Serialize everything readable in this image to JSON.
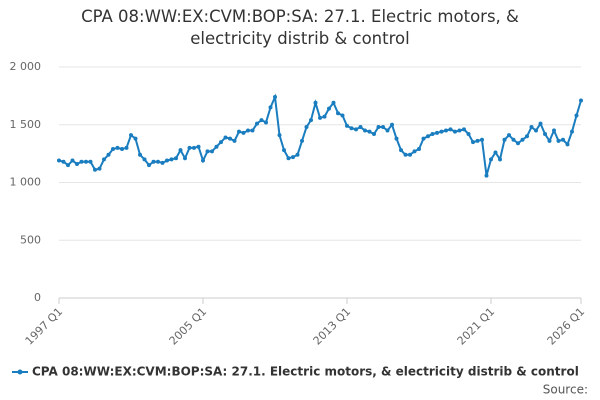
{
  "chart_data": {
    "type": "line",
    "title": "CPA 08:WW:EX:CVM:BOP:SA: 27.1. Electric motors, & electricity distrib & control",
    "categories": [
      "1997 Q1",
      null,
      null,
      null,
      null,
      null,
      null,
      null,
      null,
      null,
      null,
      null,
      null,
      null,
      null,
      null,
      null,
      null,
      null,
      null,
      null,
      null,
      null,
      null,
      null,
      null,
      null,
      null,
      null,
      null,
      null,
      null,
      "2005 Q1",
      null,
      null,
      null,
      null,
      null,
      null,
      null,
      null,
      null,
      null,
      null,
      null,
      null,
      null,
      null,
      null,
      null,
      null,
      null,
      null,
      null,
      null,
      null,
      null,
      null,
      null,
      null,
      null,
      null,
      null,
      null,
      "2013 Q1",
      null,
      null,
      null,
      null,
      null,
      null,
      null,
      null,
      null,
      null,
      null,
      null,
      null,
      null,
      null,
      null,
      null,
      null,
      null,
      null,
      null,
      null,
      null,
      null,
      null,
      null,
      null,
      null,
      null,
      null,
      null,
      "2021 Q1",
      null,
      null,
      null,
      null,
      null,
      null,
      null,
      null,
      null,
      null,
      null,
      null,
      null,
      null,
      null,
      null,
      null,
      null,
      null,
      "2026 Q1"
    ],
    "series": [
      {
        "name": "CPA 08:WW:EX:CVM:BOP:SA: 27.1. Electric motors, & electricity distrib & control",
        "color": "#1a7dbf",
        "values": [
          1190,
          1180,
          1150,
          1190,
          1160,
          1180,
          1180,
          1180,
          1110,
          1120,
          1200,
          1240,
          1290,
          1300,
          1290,
          1300,
          1410,
          1380,
          1240,
          1200,
          1150,
          1180,
          1180,
          1170,
          1190,
          1200,
          1210,
          1280,
          1210,
          1300,
          1300,
          1310,
          1190,
          1270,
          1270,
          1310,
          1350,
          1390,
          1380,
          1360,
          1440,
          1430,
          1450,
          1450,
          1510,
          1540,
          1520,
          1650,
          1740,
          1410,
          1280,
          1210,
          1220,
          1240,
          1360,
          1480,
          1540,
          1690,
          1560,
          1570,
          1640,
          1690,
          1600,
          1580,
          1490,
          1470,
          1460,
          1480,
          1450,
          1440,
          1420,
          1480,
          1480,
          1450,
          1500,
          1380,
          1280,
          1240,
          1240,
          1270,
          1290,
          1380,
          1400,
          1420,
          1430,
          1440,
          1450,
          1460,
          1440,
          1450,
          1460,
          1420,
          1350,
          1360,
          1370,
          1060,
          1200,
          1260,
          1200,
          1370,
          1410,
          1370,
          1340,
          1370,
          1400,
          1480,
          1450,
          1510,
          1420,
          1360,
          1450,
          1360,
          1370,
          1330,
          1440,
          1580,
          1710
        ]
      }
    ],
    "ylim": [
      0,
      2000
    ],
    "yticks": [
      0,
      500,
      {
        "value": 1000,
        "label": "1 000"
      },
      {
        "value": 1500,
        "label": "1 500"
      },
      {
        "value": 2000,
        "label": "2 000"
      }
    ],
    "grid": true,
    "source": "Source:"
  }
}
